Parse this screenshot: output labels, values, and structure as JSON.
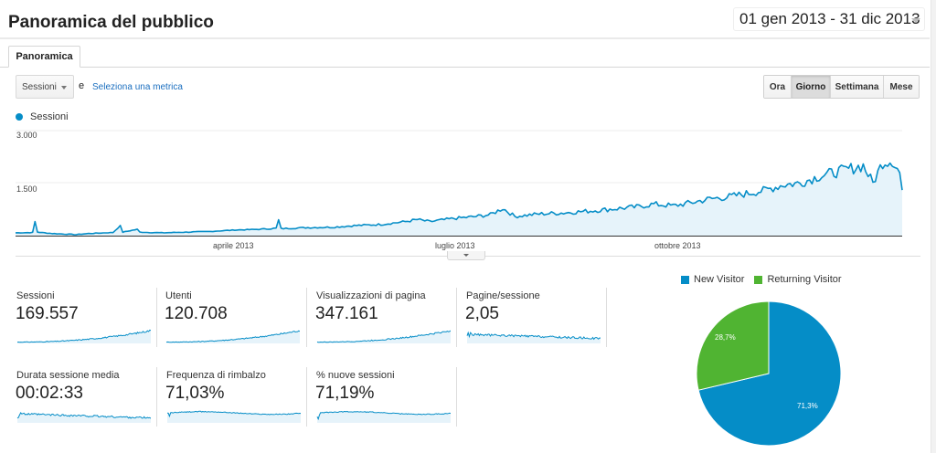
{
  "header": {
    "title": "Panoramica del pubblico",
    "date_range": "01 gen 2013 - 31 dic 2013"
  },
  "tabs": [
    {
      "label": "Panoramica",
      "active": true
    }
  ],
  "controls": {
    "metric_select": "Sessioni",
    "conjunction": "e",
    "select_metric_link": "Seleziona una metrica",
    "granularity": [
      {
        "label": "Ora",
        "active": false
      },
      {
        "label": "Giorno",
        "active": true
      },
      {
        "label": "Settimana",
        "active": false
      },
      {
        "label": "Mese",
        "active": false
      }
    ]
  },
  "colors": {
    "primary_blue": "#058dc7",
    "fill_blue": "#e6f3fa",
    "green": "#50b432"
  },
  "chart_data": [
    {
      "type": "area",
      "title": "",
      "series": [
        {
          "name": "Sessioni",
          "color": "#058dc7"
        }
      ],
      "legend": "Sessioni",
      "y_ticks": [
        "3.000",
        "1.500"
      ],
      "ylim": [
        0,
        3000
      ],
      "x_ticks": [
        "aprile 2013",
        "luglio 2013",
        "ottobre 2013"
      ],
      "x_range": [
        "01 gen 2013",
        "31 dic 2013"
      ],
      "grid": true,
      "approx_points": [
        [
          0,
          80
        ],
        [
          7,
          90
        ],
        [
          8,
          400
        ],
        [
          9,
          100
        ],
        [
          15,
          60
        ],
        [
          25,
          30
        ],
        [
          30,
          60
        ],
        [
          40,
          90
        ],
        [
          43,
          280
        ],
        [
          44,
          100
        ],
        [
          50,
          180
        ],
        [
          51,
          100
        ],
        [
          60,
          80
        ],
        [
          70,
          100
        ],
        [
          80,
          120
        ],
        [
          90,
          160
        ],
        [
          100,
          180
        ],
        [
          107,
          210
        ],
        [
          108,
          440
        ],
        [
          109,
          200
        ],
        [
          120,
          230
        ],
        [
          130,
          240
        ],
        [
          140,
          290
        ],
        [
          150,
          320
        ],
        [
          160,
          400
        ],
        [
          165,
          460
        ],
        [
          170,
          400
        ],
        [
          180,
          490
        ],
        [
          188,
          540
        ],
        [
          195,
          600
        ],
        [
          200,
          780
        ],
        [
          205,
          550
        ],
        [
          215,
          620
        ],
        [
          225,
          650
        ],
        [
          235,
          700
        ],
        [
          245,
          760
        ],
        [
          255,
          820
        ],
        [
          262,
          900
        ],
        [
          270,
          850
        ],
        [
          278,
          950
        ],
        [
          285,
          1050
        ],
        [
          292,
          1100
        ],
        [
          300,
          1200
        ],
        [
          308,
          1300
        ],
        [
          315,
          1450
        ],
        [
          322,
          1500
        ],
        [
          330,
          1700
        ],
        [
          336,
          1800
        ],
        [
          342,
          1900
        ],
        [
          348,
          2000
        ],
        [
          352,
          1500
        ],
        [
          356,
          2100
        ],
        [
          360,
          2150
        ],
        [
          363,
          1800
        ],
        [
          364,
          1300
        ]
      ]
    },
    {
      "type": "pie",
      "legend_position": "top",
      "categories": [
        "New Visitor",
        "Returning Visitor"
      ],
      "values": [
        71.3,
        28.7
      ],
      "labels": [
        "71,3%",
        "28,7%"
      ],
      "colors": [
        "#058dc7",
        "#50b432"
      ]
    }
  ],
  "kpis": [
    {
      "label": "Sessioni",
      "value": "169.557",
      "trend": "rising"
    },
    {
      "label": "Utenti",
      "value": "120.708",
      "trend": "rising"
    },
    {
      "label": "Visualizzazioni di pagina",
      "value": "347.161",
      "trend": "rising"
    },
    {
      "label": "Pagine/sessione",
      "value": "2,05",
      "trend": "flat-decline"
    },
    {
      "label": "Durata sessione media",
      "value": "00:02:33",
      "trend": "flat-decline"
    },
    {
      "label": "Frequenza di rimbalzo",
      "value": "71,03%",
      "trend": "flat"
    },
    {
      "label": "% nuove sessioni",
      "value": "71,19%",
      "trend": "flat"
    }
  ],
  "pie_legend": [
    {
      "label": "New Visitor",
      "color": "#058dc7"
    },
    {
      "label": "Returning Visitor",
      "color": "#50b432"
    }
  ]
}
